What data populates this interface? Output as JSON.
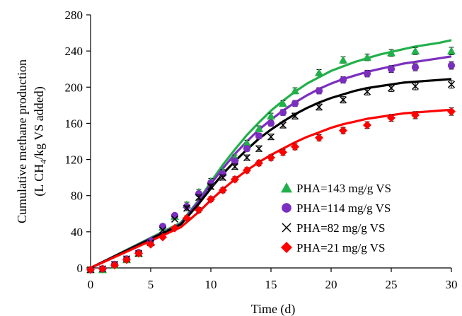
{
  "chart_data": {
    "type": "scatter",
    "title": "",
    "xlabel": "Time (d)",
    "ylabel_line1": "Cumulative methane production",
    "ylabel_line2_prefix": "(L CH",
    "ylabel_line2_sub": "4",
    "ylabel_line2_suffix": "/kg VS added)",
    "xlim": [
      0,
      30
    ],
    "ylim": [
      0,
      280
    ],
    "xticks": [
      0,
      5,
      10,
      15,
      20,
      25,
      30
    ],
    "yticks": [
      0,
      40,
      80,
      120,
      160,
      200,
      240,
      280
    ],
    "grid": false,
    "legend_position": "bottom-right",
    "x": [
      0,
      1,
      2,
      3,
      4,
      5,
      6,
      7,
      8,
      9,
      10,
      11,
      12,
      13,
      14,
      15,
      16,
      17,
      19,
      21,
      23,
      25,
      27,
      30
    ],
    "series": [
      {
        "name": "PHA=143 mg/g VS",
        "marker": "triangle",
        "color": "#22b04b",
        "points": [
          -2,
          -2,
          3,
          9,
          16,
          28,
          45,
          57,
          70,
          84,
          96,
          106,
          122,
          138,
          154,
          168,
          182,
          196,
          216,
          230,
          233,
          238,
          240,
          240
        ],
        "fit": [
          [
            0,
            0
          ],
          [
            7.5,
            50
          ],
          [
            9,
            75
          ],
          [
            10,
            95
          ],
          [
            11,
            114
          ],
          [
            12,
            131
          ],
          [
            13,
            147
          ],
          [
            14,
            161
          ],
          [
            15,
            174
          ],
          [
            16,
            185
          ],
          [
            17,
            195
          ],
          [
            18,
            204
          ],
          [
            19,
            211
          ],
          [
            20,
            218
          ],
          [
            21,
            223
          ],
          [
            22,
            228
          ],
          [
            23,
            232
          ],
          [
            24,
            236
          ],
          [
            25,
            239
          ],
          [
            26,
            242
          ],
          [
            27,
            245
          ],
          [
            28,
            247
          ],
          [
            29,
            249
          ],
          [
            30,
            252
          ]
        ]
      },
      {
        "name": "PHA=114 mg/g VS",
        "marker": "circle",
        "color": "#7b2fbe",
        "points": [
          -2,
          -1,
          4,
          10,
          17,
          30,
          46,
          58,
          68,
          82,
          94,
          104,
          118,
          132,
          146,
          160,
          172,
          182,
          196,
          208,
          215,
          220,
          222,
          224
        ],
        "fit": [
          [
            0,
            0
          ],
          [
            7.5,
            49
          ],
          [
            9,
            74
          ],
          [
            10,
            93
          ],
          [
            11,
            110
          ],
          [
            12,
            126
          ],
          [
            13,
            140
          ],
          [
            14,
            153
          ],
          [
            15,
            164
          ],
          [
            16,
            174
          ],
          [
            17,
            183
          ],
          [
            18,
            191
          ],
          [
            19,
            198
          ],
          [
            20,
            204
          ],
          [
            21,
            209
          ],
          [
            22,
            213
          ],
          [
            23,
            217
          ],
          [
            24,
            220
          ],
          [
            25,
            223
          ],
          [
            26,
            226
          ],
          [
            27,
            228
          ],
          [
            28,
            230
          ],
          [
            29,
            232
          ],
          [
            30,
            234
          ]
        ]
      },
      {
        "name": "PHA=82 mg/g VS",
        "marker": "x",
        "color": "#000000",
        "points": [
          -2,
          -1,
          4,
          10,
          16,
          28,
          42,
          54,
          66,
          78,
          90,
          100,
          112,
          122,
          132,
          145,
          158,
          168,
          178,
          186,
          195,
          199,
          201,
          203
        ],
        "fit": [
          [
            0,
            0
          ],
          [
            7.5,
            48
          ],
          [
            9,
            71
          ],
          [
            10,
            88
          ],
          [
            11,
            104
          ],
          [
            12,
            118
          ],
          [
            13,
            131
          ],
          [
            14,
            143
          ],
          [
            15,
            153
          ],
          [
            16,
            162
          ],
          [
            17,
            170
          ],
          [
            18,
            177
          ],
          [
            19,
            183
          ],
          [
            20,
            188
          ],
          [
            21,
            192
          ],
          [
            22,
            196
          ],
          [
            23,
            199
          ],
          [
            24,
            201
          ],
          [
            25,
            203
          ],
          [
            26,
            205
          ],
          [
            27,
            206
          ],
          [
            28,
            207
          ],
          [
            29,
            208
          ],
          [
            30,
            209
          ]
        ]
      },
      {
        "name": "PHA=21 mg/g VS",
        "marker": "diamond",
        "color": "#ff0000",
        "points": [
          -2,
          -1,
          3,
          9,
          16,
          26,
          34,
          44,
          55,
          64,
          76,
          86,
          98,
          108,
          116,
          122,
          128,
          134,
          144,
          152,
          158,
          166,
          169,
          173
        ],
        "fit": [
          [
            0,
            0
          ],
          [
            7.5,
            45
          ],
          [
            9,
            62
          ],
          [
            10,
            75
          ],
          [
            11,
            87
          ],
          [
            12,
            98
          ],
          [
            13,
            108
          ],
          [
            14,
            117
          ],
          [
            15,
            125
          ],
          [
            16,
            132
          ],
          [
            17,
            139
          ],
          [
            18,
            145
          ],
          [
            19,
            150
          ],
          [
            20,
            155
          ],
          [
            21,
            159
          ],
          [
            22,
            162
          ],
          [
            23,
            165
          ],
          [
            24,
            167
          ],
          [
            25,
            169
          ],
          [
            26,
            171
          ],
          [
            27,
            172
          ],
          [
            28,
            173
          ],
          [
            29,
            174
          ],
          [
            30,
            175
          ]
        ]
      }
    ]
  }
}
